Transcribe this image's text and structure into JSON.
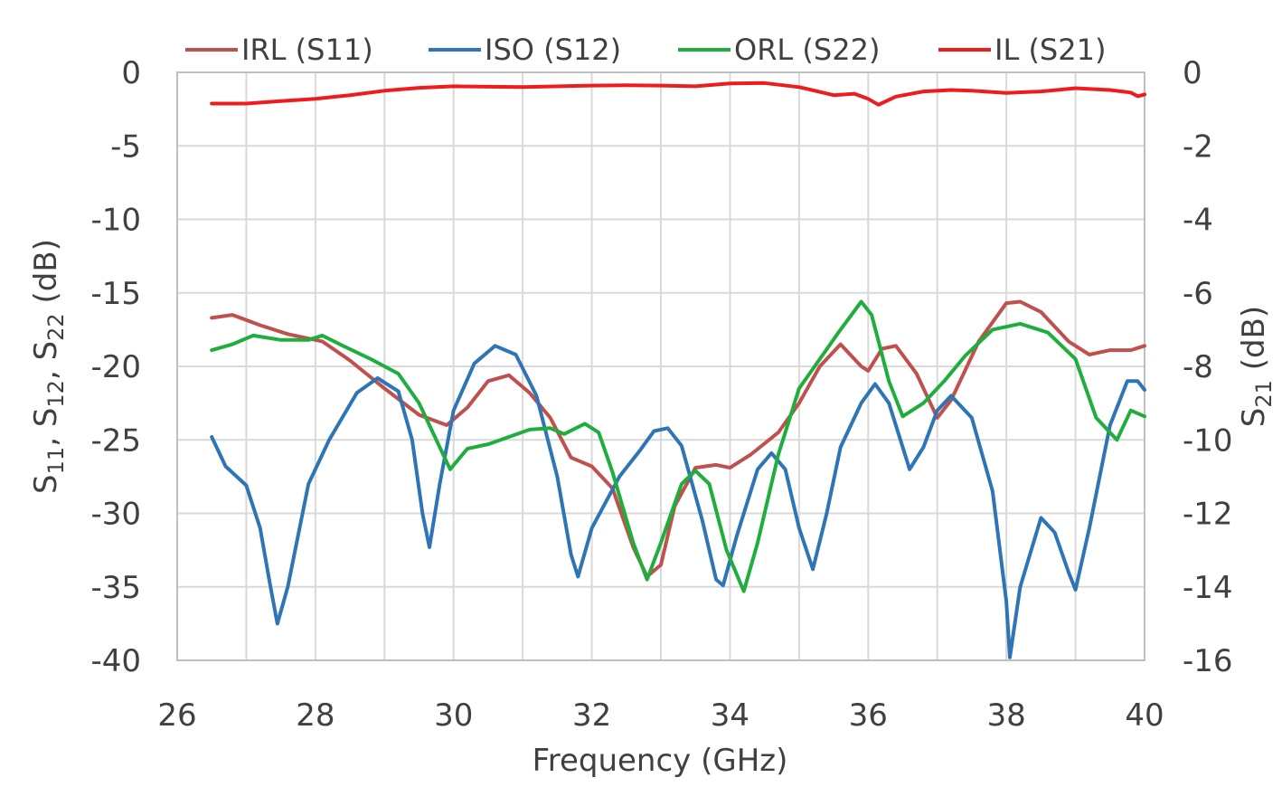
{
  "chart_data": {
    "type": "line",
    "title": "",
    "xlabel": "Frequency (GHz)",
    "ylabel_left": "S11, S12, S22 (dB)",
    "ylabel_right": "S21 (dB)",
    "xlim": [
      26,
      40
    ],
    "ylim_left": [
      -40,
      0
    ],
    "ylim_right": [
      -16,
      0
    ],
    "x_ticks": [
      26,
      28,
      30,
      32,
      34,
      36,
      38,
      40
    ],
    "y_left_ticks": [
      0,
      -5,
      -10,
      -15,
      -20,
      -25,
      -30,
      -35,
      -40
    ],
    "y_right_ticks": [
      0,
      -2,
      -4,
      -6,
      -8,
      -10,
      -12,
      -14,
      -16
    ],
    "grid": true,
    "legend_position": "top",
    "series": [
      {
        "name": "IRL (S11)",
        "axis": "left",
        "color": "#c0504d",
        "points": [
          [
            26.5,
            -16.7
          ],
          [
            26.8,
            -16.5
          ],
          [
            27.2,
            -17.2
          ],
          [
            27.6,
            -17.8
          ],
          [
            28.1,
            -18.3
          ],
          [
            28.5,
            -19.6
          ],
          [
            29.0,
            -21.5
          ],
          [
            29.5,
            -23.3
          ],
          [
            29.9,
            -24.0
          ],
          [
            30.2,
            -22.8
          ],
          [
            30.5,
            -21.0
          ],
          [
            30.8,
            -20.6
          ],
          [
            31.1,
            -21.8
          ],
          [
            31.4,
            -23.5
          ],
          [
            31.7,
            -26.2
          ],
          [
            32.0,
            -26.8
          ],
          [
            32.3,
            -28.3
          ],
          [
            32.6,
            -32.3
          ],
          [
            32.8,
            -34.3
          ],
          [
            33.0,
            -33.5
          ],
          [
            33.2,
            -29.5
          ],
          [
            33.5,
            -26.9
          ],
          [
            33.8,
            -26.7
          ],
          [
            34.0,
            -26.9
          ],
          [
            34.3,
            -26.0
          ],
          [
            34.7,
            -24.5
          ],
          [
            35.0,
            -22.5
          ],
          [
            35.3,
            -20.0
          ],
          [
            35.6,
            -18.5
          ],
          [
            35.9,
            -20.0
          ],
          [
            36.0,
            -20.3
          ],
          [
            36.2,
            -18.8
          ],
          [
            36.4,
            -18.6
          ],
          [
            36.7,
            -20.5
          ],
          [
            37.0,
            -23.5
          ],
          [
            37.2,
            -22.3
          ],
          [
            37.6,
            -18.3
          ],
          [
            38.0,
            -15.7
          ],
          [
            38.2,
            -15.6
          ],
          [
            38.5,
            -16.3
          ],
          [
            38.9,
            -18.3
          ],
          [
            39.2,
            -19.2
          ],
          [
            39.5,
            -18.9
          ],
          [
            39.8,
            -18.9
          ],
          [
            40.0,
            -18.6
          ]
        ]
      },
      {
        "name": "ISO (S12)",
        "axis": "left",
        "color": "#2e75b6",
        "points": [
          [
            26.5,
            -24.8
          ],
          [
            26.7,
            -26.8
          ],
          [
            27.0,
            -28.1
          ],
          [
            27.2,
            -31.0
          ],
          [
            27.35,
            -35.0
          ],
          [
            27.45,
            -37.5
          ],
          [
            27.6,
            -35.0
          ],
          [
            27.9,
            -28.0
          ],
          [
            28.2,
            -25.0
          ],
          [
            28.6,
            -21.8
          ],
          [
            28.9,
            -20.8
          ],
          [
            29.2,
            -21.7
          ],
          [
            29.4,
            -25.0
          ],
          [
            29.55,
            -30.0
          ],
          [
            29.65,
            -32.3
          ],
          [
            29.8,
            -28.0
          ],
          [
            30.0,
            -23.0
          ],
          [
            30.3,
            -19.8
          ],
          [
            30.6,
            -18.6
          ],
          [
            30.9,
            -19.2
          ],
          [
            31.2,
            -22.0
          ],
          [
            31.5,
            -27.5
          ],
          [
            31.7,
            -32.8
          ],
          [
            31.8,
            -34.3
          ],
          [
            32.0,
            -31.0
          ],
          [
            32.4,
            -27.5
          ],
          [
            32.7,
            -25.7
          ],
          [
            32.9,
            -24.4
          ],
          [
            33.1,
            -24.2
          ],
          [
            33.3,
            -25.4
          ],
          [
            33.6,
            -30.5
          ],
          [
            33.8,
            -34.5
          ],
          [
            33.9,
            -34.9
          ],
          [
            34.1,
            -31.5
          ],
          [
            34.4,
            -27.0
          ],
          [
            34.6,
            -25.9
          ],
          [
            34.8,
            -27.0
          ],
          [
            35.0,
            -31.0
          ],
          [
            35.2,
            -33.8
          ],
          [
            35.4,
            -30.0
          ],
          [
            35.6,
            -25.5
          ],
          [
            35.9,
            -22.5
          ],
          [
            36.1,
            -21.2
          ],
          [
            36.3,
            -22.5
          ],
          [
            36.5,
            -25.5
          ],
          [
            36.6,
            -27.0
          ],
          [
            36.8,
            -25.5
          ],
          [
            37.0,
            -23.0
          ],
          [
            37.2,
            -22.0
          ],
          [
            37.5,
            -23.5
          ],
          [
            37.8,
            -28.5
          ],
          [
            38.0,
            -36.0
          ],
          [
            38.05,
            -39.8
          ],
          [
            38.2,
            -35.0
          ],
          [
            38.5,
            -30.3
          ],
          [
            38.7,
            -31.3
          ],
          [
            38.9,
            -34.0
          ],
          [
            39.0,
            -35.2
          ],
          [
            39.2,
            -31.0
          ],
          [
            39.5,
            -24.0
          ],
          [
            39.75,
            -21.0
          ],
          [
            39.9,
            -21.0
          ],
          [
            40.0,
            -21.6
          ]
        ]
      },
      {
        "name": "ORL (S22)",
        "axis": "left",
        "color": "#1fae3e",
        "points": [
          [
            26.5,
            -18.9
          ],
          [
            26.8,
            -18.5
          ],
          [
            27.1,
            -17.9
          ],
          [
            27.5,
            -18.2
          ],
          [
            27.9,
            -18.2
          ],
          [
            28.1,
            -17.9
          ],
          [
            28.4,
            -18.6
          ],
          [
            28.8,
            -19.5
          ],
          [
            29.2,
            -20.5
          ],
          [
            29.5,
            -22.5
          ],
          [
            29.8,
            -25.5
          ],
          [
            29.95,
            -27.0
          ],
          [
            30.2,
            -25.6
          ],
          [
            30.5,
            -25.3
          ],
          [
            30.8,
            -24.8
          ],
          [
            31.1,
            -24.3
          ],
          [
            31.4,
            -24.2
          ],
          [
            31.6,
            -24.6
          ],
          [
            31.9,
            -23.9
          ],
          [
            32.1,
            -24.5
          ],
          [
            32.3,
            -27.2
          ],
          [
            32.6,
            -32.0
          ],
          [
            32.8,
            -34.5
          ],
          [
            33.0,
            -32.0
          ],
          [
            33.3,
            -28.0
          ],
          [
            33.5,
            -27.1
          ],
          [
            33.7,
            -28.0
          ],
          [
            33.95,
            -32.5
          ],
          [
            34.2,
            -35.3
          ],
          [
            34.4,
            -32.0
          ],
          [
            34.7,
            -26.0
          ],
          [
            35.0,
            -21.5
          ],
          [
            35.3,
            -19.5
          ],
          [
            35.6,
            -17.5
          ],
          [
            35.9,
            -15.6
          ],
          [
            36.05,
            -16.5
          ],
          [
            36.3,
            -21.0
          ],
          [
            36.5,
            -23.4
          ],
          [
            36.8,
            -22.5
          ],
          [
            37.1,
            -21.0
          ],
          [
            37.4,
            -19.3
          ],
          [
            37.8,
            -17.5
          ],
          [
            38.2,
            -17.1
          ],
          [
            38.6,
            -17.7
          ],
          [
            39.0,
            -19.5
          ],
          [
            39.3,
            -23.5
          ],
          [
            39.6,
            -25.0
          ],
          [
            39.8,
            -23.0
          ],
          [
            40.0,
            -23.4
          ]
        ]
      },
      {
        "name": "IL (S21)",
        "axis": "right",
        "color": "#ee1c1c",
        "points": [
          [
            26.5,
            -0.85
          ],
          [
            27.0,
            -0.85
          ],
          [
            27.5,
            -0.78
          ],
          [
            28.0,
            -0.72
          ],
          [
            28.5,
            -0.62
          ],
          [
            29.0,
            -0.5
          ],
          [
            29.5,
            -0.42
          ],
          [
            30.0,
            -0.38
          ],
          [
            31.0,
            -0.4
          ],
          [
            32.0,
            -0.36
          ],
          [
            32.5,
            -0.35
          ],
          [
            33.0,
            -0.36
          ],
          [
            33.5,
            -0.38
          ],
          [
            34.0,
            -0.3
          ],
          [
            34.5,
            -0.29
          ],
          [
            35.0,
            -0.4
          ],
          [
            35.5,
            -0.62
          ],
          [
            35.8,
            -0.58
          ],
          [
            36.0,
            -0.72
          ],
          [
            36.15,
            -0.88
          ],
          [
            36.4,
            -0.66
          ],
          [
            36.8,
            -0.52
          ],
          [
            37.2,
            -0.48
          ],
          [
            37.5,
            -0.5
          ],
          [
            38.0,
            -0.56
          ],
          [
            38.5,
            -0.52
          ],
          [
            39.0,
            -0.43
          ],
          [
            39.5,
            -0.48
          ],
          [
            39.8,
            -0.55
          ],
          [
            39.9,
            -0.65
          ],
          [
            40.0,
            -0.6
          ]
        ]
      }
    ]
  }
}
